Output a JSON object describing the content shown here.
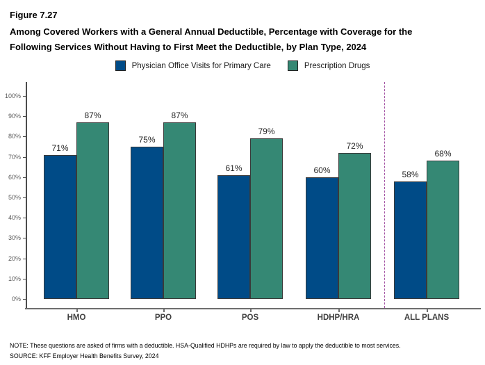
{
  "header": {
    "figure_label": "Figure 7.27",
    "title_line1": "Among Covered Workers with a General Annual Deductible, Percentage with Coverage for the",
    "title_line2": "Following Services Without Having to First Meet the Deductible, by Plan Type, 2024"
  },
  "legend": {
    "items": [
      {
        "label": "Physician Office Visits for Primary Care",
        "color": "#004B87"
      },
      {
        "label": "Prescription Drugs",
        "color": "#358874"
      }
    ]
  },
  "chart_data": {
    "type": "bar",
    "grouped": true,
    "categories": [
      "HMO",
      "PPO",
      "POS",
      "HDHP/HRA",
      "ALL PLANS"
    ],
    "series": [
      {
        "name": "Physician Office Visits for Primary Care",
        "color": "#004B87",
        "values": [
          71,
          75,
          61,
          60,
          58
        ],
        "value_labels": [
          "71%",
          "75%",
          "61%",
          "60%",
          "58%"
        ]
      },
      {
        "name": "Prescription Drugs",
        "color": "#358874",
        "values": [
          87,
          87,
          79,
          72,
          68
        ],
        "value_labels": [
          "87%",
          "87%",
          "79%",
          "72%",
          "68%"
        ]
      }
    ],
    "ylim": [
      0,
      100
    ],
    "ytick_labels": [
      "0%",
      "10%",
      "20%",
      "30%",
      "40%",
      "50%",
      "60%",
      "70%",
      "80%",
      "90%",
      "100%"
    ],
    "grid": false,
    "legend_position": "top",
    "separator": {
      "between": [
        "HDHP/HRA",
        "ALL PLANS"
      ],
      "style": "dashed",
      "color": "#A352A3"
    }
  },
  "footer": {
    "note": "NOTE: These questions are asked of firms with a deductible. HSA-Qualified HDHPs are required by law to apply the deductible to most services.",
    "source": "SOURCE: KFF Employer Health Benefits Survey, 2024"
  }
}
